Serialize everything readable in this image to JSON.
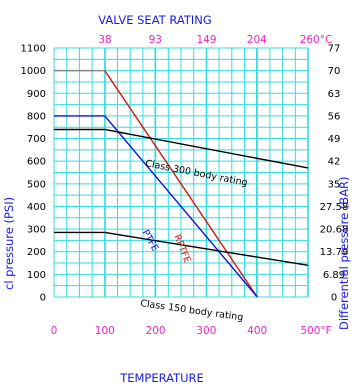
{
  "chart_data": {
    "type": "line",
    "title": "VALVE SEAT RATING",
    "xlabel": "TEMPERATURE",
    "ylabel_left": "cl pressure (PSI)",
    "ylabel_right": "Differential pressure (BAR)",
    "xlim": [
      0,
      500
    ],
    "ylim": [
      0,
      1100
    ],
    "x_ticks": [
      "0",
      "100",
      "200",
      "300",
      "400",
      "500°F"
    ],
    "x_ticks_top": [
      "38",
      "93",
      "149",
      "204",
      "260°C"
    ],
    "y_ticks_left": [
      "0",
      "100",
      "200",
      "300",
      "400",
      "500",
      "600",
      "700",
      "800",
      "900",
      "1000",
      "1100"
    ],
    "y_ticks_right": [
      "0",
      "6.89",
      "13.79",
      "20.68",
      "27.58",
      "35",
      "42",
      "49",
      "56",
      "63",
      "70",
      "77"
    ],
    "grid": true,
    "series": [
      {
        "name": "RPTFE",
        "color": "#dd1111",
        "x": [
          0,
          100,
          400
        ],
        "y": [
          1000,
          1000,
          0
        ]
      },
      {
        "name": "PTFE",
        "color": "#1111dd",
        "x": [
          0,
          100,
          400
        ],
        "y": [
          800,
          800,
          0
        ]
      },
      {
        "name": "Class 300 body rating",
        "color": "#000000",
        "x": [
          0,
          100,
          500
        ],
        "y": [
          740,
          740,
          570
        ]
      },
      {
        "name": "Class 150 body rating",
        "color": "#000000",
        "x": [
          0,
          100,
          500
        ],
        "y": [
          285,
          285,
          140
        ]
      }
    ]
  },
  "colors": {
    "grid": "#33dddd",
    "title": "#1a1aee",
    "top_ticks": "#ee22cc",
    "bottom_ticks": "#ee22cc",
    "axis_labels": "#1a1aee",
    "gray_segment": "#888888"
  }
}
